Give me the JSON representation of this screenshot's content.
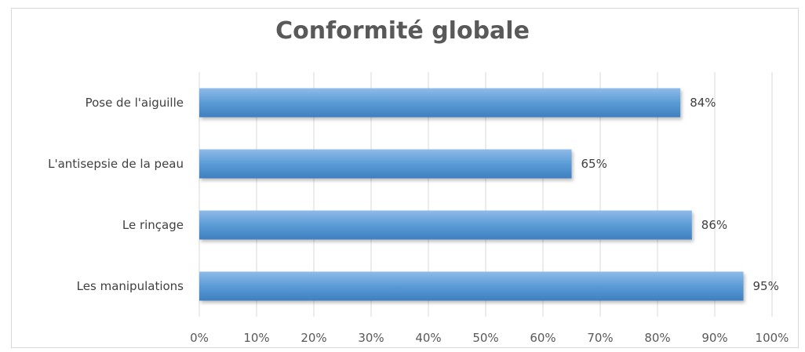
{
  "chart_data": {
    "type": "bar",
    "orientation": "horizontal",
    "title": "Conformité globale",
    "categories": [
      "Pose de l'aiguille",
      "L'antisepsie de la peau",
      "Le rinçage",
      "Les manipulations"
    ],
    "values": [
      84,
      65,
      86,
      95
    ],
    "data_labels": [
      "84%",
      "65%",
      "86%",
      "95%"
    ],
    "xlim": [
      0,
      100
    ],
    "x_ticks": [
      "0%",
      "10%",
      "20%",
      "30%",
      "40%",
      "50%",
      "60%",
      "70%",
      "80%",
      "90%",
      "100%"
    ],
    "grid": "vertical",
    "legend": "none",
    "bar_color": "#5b9bd5",
    "bar_color_light": "#8fbbe8",
    "bar_color_dark": "#3e7fc1"
  }
}
